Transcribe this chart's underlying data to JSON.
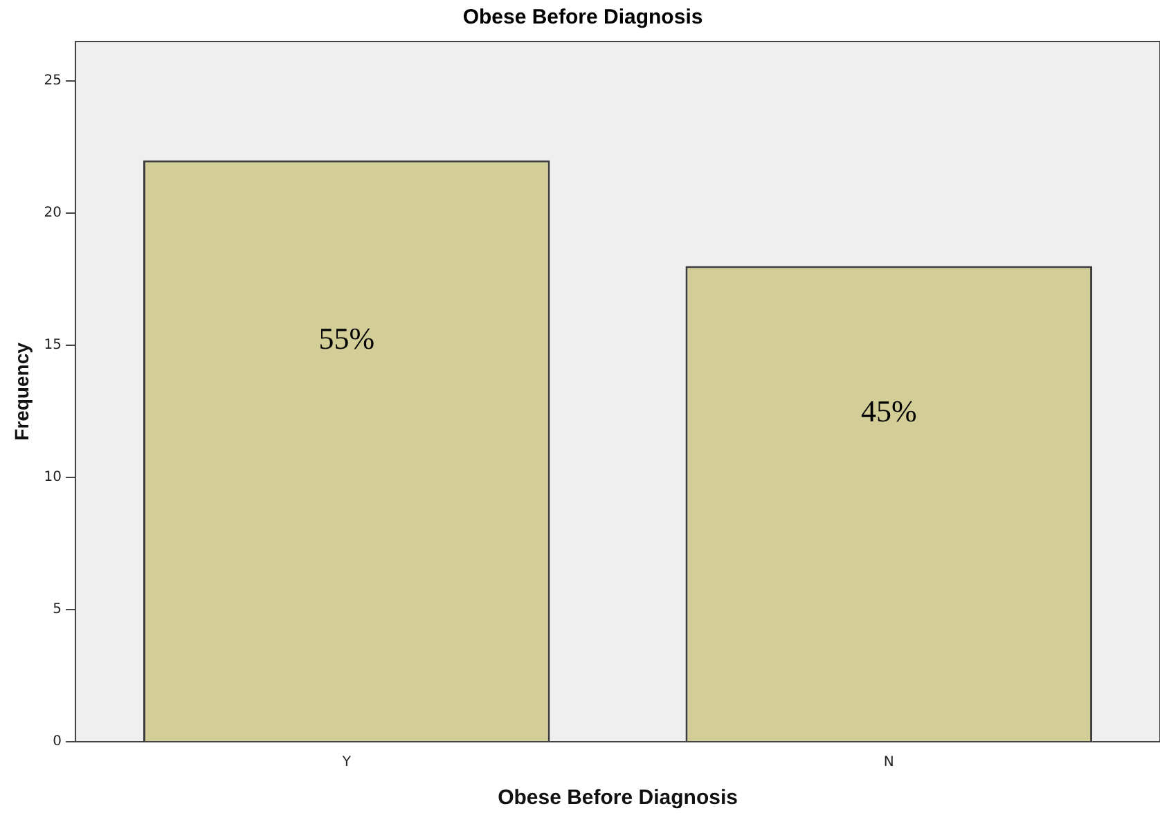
{
  "chart_data": {
    "type": "bar",
    "title": "Obese Before Diagnosis",
    "xlabel": "Obese Before Diagnosis",
    "ylabel": "Frequency",
    "categories": [
      "Y",
      "N"
    ],
    "values": [
      22,
      18
    ],
    "color": "#d3ce97",
    "annotations": [
      "55%",
      "45%"
    ],
    "ylim": [
      0,
      26.5
    ],
    "yticks": [
      0,
      5,
      10,
      15,
      20,
      25
    ],
    "grid": false,
    "legend": false
  }
}
